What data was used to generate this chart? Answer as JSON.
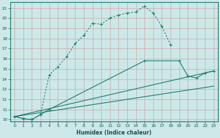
{
  "xlabel": "Humidex (Indice chaleur)",
  "ylabel": "",
  "xlim": [
    -0.5,
    23.5
  ],
  "ylim": [
    9.8,
    21.6
  ],
  "yticks": [
    10,
    11,
    12,
    13,
    14,
    15,
    16,
    17,
    18,
    19,
    20,
    21
  ],
  "xticks": [
    0,
    1,
    2,
    3,
    4,
    5,
    6,
    7,
    8,
    9,
    10,
    11,
    12,
    13,
    14,
    15,
    16,
    17,
    18,
    19,
    20,
    21,
    22,
    23
  ],
  "bg_color": "#cce8e8",
  "grid_color": "#b0d4d4",
  "line_color": "#1a7a6e",
  "line1": {
    "x": [
      0,
      1,
      2,
      3,
      4,
      5,
      6,
      7,
      8,
      9,
      10,
      11,
      12,
      13,
      14,
      15,
      16,
      17,
      18
    ],
    "y": [
      10.3,
      10.1,
      10.0,
      10.5,
      14.4,
      15.2,
      16.2,
      17.5,
      18.3,
      19.5,
      19.4,
      20.0,
      20.3,
      20.5,
      20.6,
      21.2,
      20.5,
      19.2,
      17.4
    ]
  },
  "line2": {
    "x": [
      0,
      1,
      2,
      3,
      4,
      15,
      19,
      20,
      21,
      22,
      23
    ],
    "y": [
      10.3,
      10.1,
      10.0,
      10.5,
      11.0,
      15.8,
      15.8,
      14.3,
      14.1,
      14.6,
      14.8
    ]
  },
  "line3_x": [
    0,
    23
  ],
  "line3_y": [
    10.3,
    14.8
  ],
  "line4_x": [
    0,
    23
  ],
  "line4_y": [
    10.3,
    13.3
  ]
}
